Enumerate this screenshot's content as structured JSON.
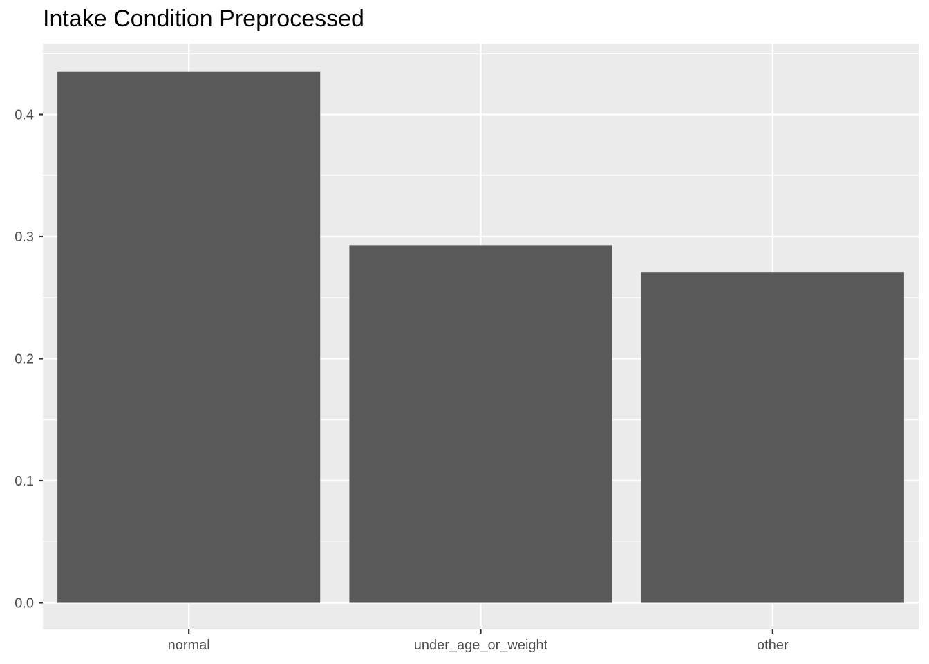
{
  "chart_data": {
    "type": "bar",
    "title": "Intake Condition Preprocessed",
    "xlabel": "",
    "ylabel": "",
    "categories": [
      "normal",
      "under_age_or_weight",
      "other"
    ],
    "values": [
      0.435,
      0.293,
      0.271
    ],
    "ylim": [
      0,
      0.45
    ],
    "yticks": [
      0.0,
      0.1,
      0.2,
      0.3,
      0.4
    ],
    "ytick_labels": [
      "0.0",
      "0.1",
      "0.2",
      "0.3",
      "0.4"
    ],
    "grid": true,
    "legend": "none",
    "colors": {
      "bar": "#595959",
      "panel": "#ebebeb",
      "grid": "#ffffff",
      "axis_text": "#4d4d4d",
      "tick": "#333333"
    }
  }
}
